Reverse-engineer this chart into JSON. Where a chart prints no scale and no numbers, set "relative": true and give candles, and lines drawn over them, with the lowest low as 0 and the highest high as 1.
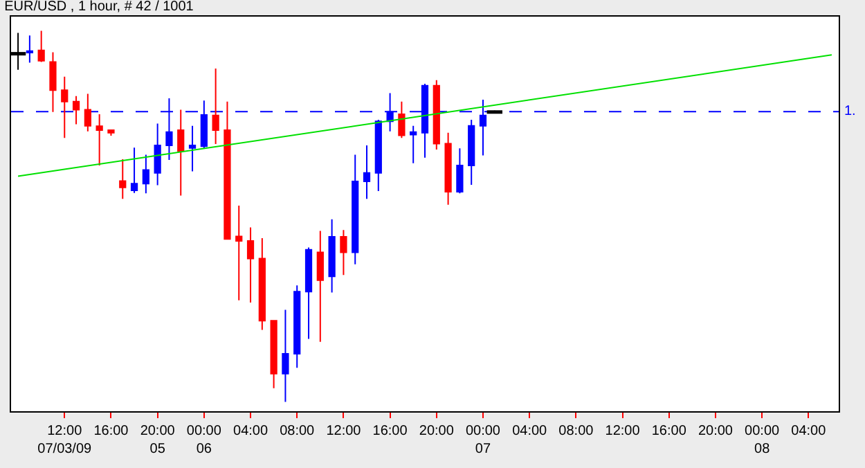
{
  "chart_data": {
    "type": "candlestick",
    "title": "EUR/USD , 1 hour, # 42 / 1001",
    "relative": true,
    "categories": [
      null,
      null,
      null,
      null,
      "12:00\n07/03/09",
      null,
      null,
      null,
      "16:00",
      null,
      null,
      null,
      "20:00\n05",
      null,
      null,
      null,
      "00:00\n06",
      null,
      null,
      null,
      "04:00",
      null,
      null,
      null,
      "08:00",
      null,
      null,
      null,
      "12:00",
      null,
      null,
      null,
      "16:00",
      null,
      null,
      null,
      "20:00",
      null,
      null,
      null,
      "00:00\n07",
      null,
      null,
      null,
      "04:00",
      null,
      null,
      null,
      "08:00",
      null,
      null,
      null,
      "12:00",
      null,
      null,
      null,
      "16:00",
      null,
      null,
      null,
      "20:00",
      null,
      null,
      null,
      "00:00\n08",
      null,
      null,
      null,
      "04:00",
      null,
      null
    ],
    "ohlc": [
      [
        0.938,
        0.994,
        0.895,
        0.938
      ],
      [
        0.941,
        0.987,
        0.914,
        0.945
      ],
      [
        0.947,
        1.0,
        0.916,
        0.919
      ],
      [
        0.916,
        0.942,
        0.781,
        0.84
      ],
      [
        0.84,
        0.876,
        0.711,
        0.809
      ],
      [
        0.809,
        0.824,
        0.748,
        0.787
      ],
      [
        0.787,
        0.83,
        0.729,
        0.744
      ],
      [
        0.743,
        0.775,
        0.637,
        0.732
      ],
      [
        0.732,
        0.733,
        0.717,
        0.725
      ],
      [
        0.595,
        0.654,
        0.547,
        0.578
      ],
      [
        0.57,
        0.685,
        0.563,
        0.588
      ],
      [
        0.588,
        0.666,
        0.562,
        0.625
      ],
      [
        0.617,
        0.75,
        0.584,
        0.691
      ],
      [
        0.691,
        0.818,
        0.652,
        0.727
      ],
      [
        0.732,
        0.787,
        0.556,
        0.676
      ],
      [
        0.684,
        0.744,
        0.621,
        0.691
      ],
      [
        0.689,
        0.812,
        0.683,
        0.773
      ],
      [
        0.772,
        0.898,
        0.695,
        0.732
      ],
      [
        0.732,
        0.809,
        0.439,
        0.439
      ],
      [
        0.446,
        0.529,
        0.274,
        0.434
      ],
      [
        0.434,
        0.47,
        0.268,
        0.386
      ],
      [
        0.386,
        0.441,
        0.194,
        0.219
      ],
      [
        0.219,
        0.219,
        0.037,
        0.076
      ],
      [
        0.076,
        0.248,
        0.0,
        0.13
      ],
      [
        0.13,
        0.314,
        0.092,
        0.297
      ],
      [
        0.297,
        0.416,
        0.17,
        0.41
      ],
      [
        0.403,
        0.461,
        0.162,
        0.328
      ],
      [
        0.338,
        0.492,
        0.295,
        0.445
      ],
      [
        0.445,
        0.463,
        0.342,
        0.403
      ],
      [
        0.403,
        0.666,
        0.371,
        0.594
      ],
      [
        0.594,
        0.691,
        0.547,
        0.617
      ],
      [
        0.617,
        0.76,
        0.568,
        0.756
      ],
      [
        0.756,
        0.832,
        0.729,
        0.781
      ],
      [
        0.775,
        0.809,
        0.711,
        0.718
      ],
      [
        0.72,
        0.744,
        0.643,
        0.727
      ],
      [
        0.725,
        0.857,
        0.658,
        0.852
      ],
      [
        0.852,
        0.867,
        0.68,
        0.696
      ],
      [
        0.696,
        0.725,
        0.531,
        0.566
      ],
      [
        0.566,
        0.683,
        0.562,
        0.637
      ],
      [
        0.637,
        0.76,
        0.585,
        0.744
      ],
      [
        0.744,
        0.814,
        0.664,
        0.772
      ],
      [
        0.781,
        0.785,
        0.779,
        0.781
      ],
      null,
      null,
      null,
      null,
      null,
      null,
      null,
      null,
      null,
      null,
      null,
      null,
      null,
      null,
      null,
      null,
      null,
      null,
      null,
      null,
      null,
      null,
      null,
      null,
      null,
      null,
      null,
      null,
      null
    ],
    "colors": [
      "#000000",
      "#0000ff",
      "#ff0000",
      "#ff0000",
      "#ff0000",
      "#ff0000",
      "#ff0000",
      "#ff0000",
      "#ff0000",
      "#ff0000",
      "#0000ff",
      "#0000ff",
      "#0000ff",
      "#0000ff",
      "#ff0000",
      "#0000ff",
      "#0000ff",
      "#ff0000",
      "#ff0000",
      "#ff0000",
      "#ff0000",
      "#ff0000",
      "#ff0000",
      "#0000ff",
      "#0000ff",
      "#0000ff",
      "#ff0000",
      "#0000ff",
      "#ff0000",
      "#0000ff",
      "#0000ff",
      "#0000ff",
      "#0000ff",
      "#ff0000",
      "#0000ff",
      "#0000ff",
      "#ff0000",
      "#ff0000",
      "#0000ff",
      "#0000ff",
      "#0000ff",
      "#000000",
      null,
      null,
      null,
      null,
      null,
      null,
      null,
      null,
      null,
      null,
      null,
      null,
      null,
      null,
      null,
      null,
      null,
      null,
      null,
      null,
      null,
      null,
      null,
      null,
      null,
      null,
      null,
      null,
      null
    ],
    "series": [
      {
        "type": "line",
        "color": "#00e000",
        "values": [
          0.608,
          null,
          null,
          null,
          null,
          null,
          null,
          null,
          null,
          null,
          null,
          null,
          null,
          null,
          null,
          null,
          null,
          null,
          null,
          null,
          null,
          null,
          null,
          null,
          null,
          null,
          null,
          null,
          null,
          null,
          null,
          null,
          null,
          null,
          null,
          null,
          null,
          null,
          null,
          null,
          null,
          null,
          null,
          null,
          null,
          null,
          null,
          null,
          null,
          null,
          null,
          null,
          null,
          null,
          null,
          null,
          null,
          null,
          null,
          null,
          null,
          null,
          null,
          null,
          null,
          null,
          null,
          null,
          null,
          null,
          0.935
        ]
      }
    ],
    "ref_lines": [
      {
        "axis": "y",
        "value": 0.782,
        "label": "1.",
        "color": "#0000ff",
        "line_style": "dashed"
      }
    ]
  }
}
